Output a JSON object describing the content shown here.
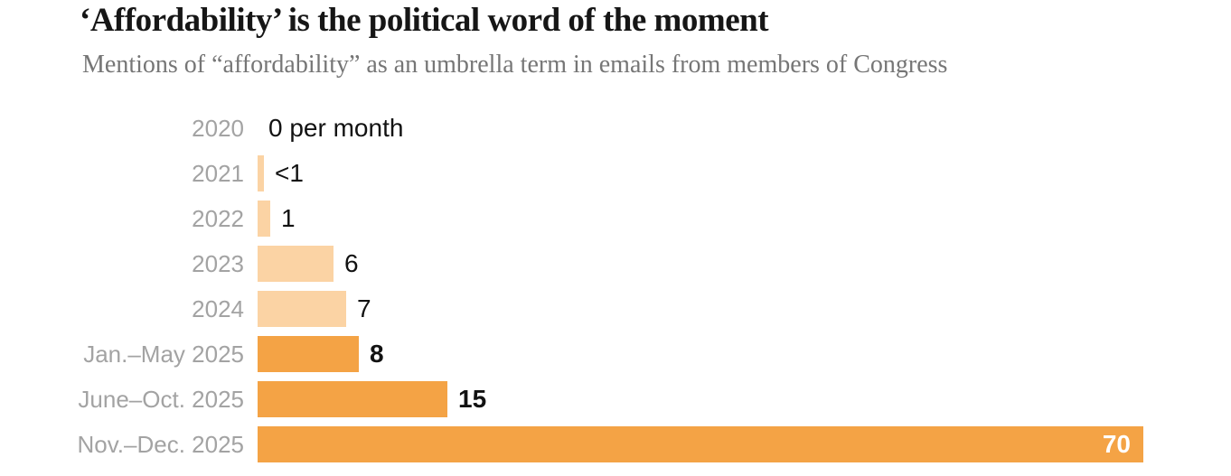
{
  "header": {
    "title": "‘Affordability’ is the political word of the moment",
    "subtitle": "Mentions of “affordability” as an umbrella term in emails from members of Congress"
  },
  "colors": {
    "bar_light": "#fbd3a4",
    "bar_highlight": "#f4a345",
    "category_label": "#a3a3a3",
    "value_label": "#121212",
    "value_label_inside": "#ffffff",
    "title": "#161616",
    "subtitle": "#767676"
  },
  "chart_data": {
    "type": "bar",
    "orientation": "horizontal",
    "title": "‘Affordability’ is the political word of the moment",
    "subtitle": "Mentions of “affordability” as an umbrella term in emails from members of Congress",
    "unit": "mentions per month",
    "xlim": [
      0,
      70
    ],
    "grid": false,
    "legend": false,
    "categories": [
      "2020",
      "2021",
      "2022",
      "2023",
      "2024",
      "Jan.–May 2025",
      "June–Oct. 2025",
      "Nov.–Dec. 2025"
    ],
    "values": [
      0,
      0.5,
      1,
      6,
      7,
      8,
      15,
      70
    ],
    "value_labels": [
      "0 per month",
      "<1",
      "1",
      "6",
      "7",
      "8",
      "15",
      "70"
    ],
    "highlighted": [
      false,
      false,
      false,
      false,
      false,
      true,
      true,
      true
    ],
    "label_inside": [
      false,
      false,
      false,
      false,
      false,
      false,
      false,
      true
    ]
  }
}
